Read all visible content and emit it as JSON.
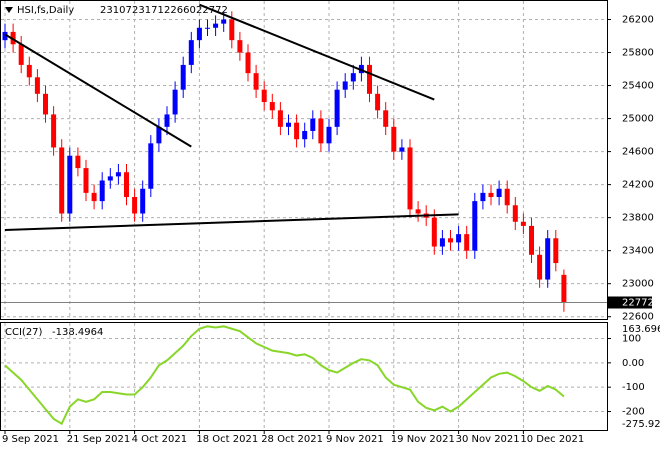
{
  "chart_data": [
    {
      "type": "candlestick",
      "title": "HSI,fs,Daily",
      "categories": [
        "9 Sep 2021",
        null,
        null,
        null,
        null,
        null,
        null,
        null,
        "21 Sep 2021",
        null,
        null,
        null,
        null,
        null,
        null,
        null,
        "4 Oct 2021",
        null,
        null,
        null,
        null,
        null,
        null,
        null,
        "18 Oct 2021",
        null,
        null,
        null,
        null,
        null,
        null,
        null,
        "28 Oct 2021",
        null,
        null,
        null,
        null,
        null,
        null,
        null,
        "9 Nov 2021",
        null,
        null,
        null,
        null,
        null,
        null,
        null,
        "19 Nov 2021",
        null,
        null,
        null,
        null,
        null,
        null,
        null,
        "30 Nov 2021",
        null,
        null,
        null,
        null,
        null,
        null,
        null,
        "10 Dec 2021",
        null,
        null,
        null,
        null,
        null
      ],
      "open": [
        25950,
        26050,
        25900,
        25650,
        25500,
        25300,
        25050,
        24650,
        23850,
        24550,
        24400,
        24100,
        24000,
        24250,
        24300,
        24350,
        24050,
        23850,
        24150,
        24700,
        24900,
        25050,
        25350,
        25650,
        25950,
        26100,
        26100,
        26150,
        26200,
        25950,
        25800,
        25550,
        25350,
        25200,
        25100,
        24900,
        24950,
        24750,
        24850,
        25000,
        24700,
        24900,
        25350,
        25450,
        25550,
        25650,
        25300,
        25100,
        24900,
        24600,
        24650,
        23900,
        23850,
        23800,
        23450,
        23550,
        23500,
        23600,
        23400,
        24000,
        24100,
        24050,
        24150,
        23950,
        23750,
        23700,
        23350,
        23050,
        23550,
        23107
      ],
      "high": [
        26150,
        26150,
        26000,
        25750,
        25600,
        25400,
        25150,
        24750,
        24650,
        24650,
        24500,
        24200,
        24350,
        24400,
        24450,
        24450,
        24150,
        24250,
        24800,
        25000,
        25150,
        25450,
        25750,
        26050,
        26200,
        26200,
        26250,
        26300,
        26300,
        26050,
        25900,
        25650,
        25450,
        25300,
        25200,
        25050,
        25050,
        24950,
        25100,
        25100,
        25000,
        25450,
        25550,
        25650,
        25750,
        25750,
        25400,
        25200,
        25000,
        24750,
        24750,
        24000,
        23950,
        23900,
        23650,
        23650,
        23700,
        23700,
        24100,
        24200,
        24200,
        24250,
        24250,
        24050,
        23850,
        23800,
        23450,
        23650,
        23650,
        23171
      ],
      "low": [
        25850,
        25800,
        25550,
        25400,
        25200,
        24950,
        24550,
        23750,
        23750,
        24300,
        24000,
        23900,
        23900,
        24150,
        24200,
        23950,
        23750,
        23750,
        24050,
        24600,
        24800,
        24950,
        25250,
        25550,
        25850,
        26000,
        26000,
        26050,
        25850,
        25700,
        25450,
        25250,
        25100,
        25000,
        24800,
        24800,
        24650,
        24650,
        24750,
        24600,
        24600,
        24800,
        25250,
        25350,
        25450,
        25200,
        25000,
        24800,
        24500,
        24500,
        23800,
        23750,
        23700,
        23350,
        23350,
        23400,
        23400,
        23300,
        23300,
        23900,
        23950,
        23950,
        23850,
        23650,
        23600,
        23250,
        22950,
        22950,
        23150,
        22660
      ],
      "close": [
        26050,
        25900,
        25650,
        25500,
        25300,
        25050,
        24650,
        23850,
        24550,
        24400,
        24100,
        24000,
        24250,
        24300,
        24350,
        24050,
        23850,
        24150,
        24700,
        24900,
        25050,
        25350,
        25650,
        25950,
        26100,
        26100,
        26150,
        26200,
        25950,
        25800,
        25550,
        25350,
        25200,
        25100,
        24900,
        24950,
        24750,
        24850,
        25000,
        24700,
        24900,
        25350,
        25450,
        25550,
        25650,
        25300,
        25100,
        24900,
        24600,
        24650,
        23900,
        23850,
        23800,
        23450,
        23550,
        23500,
        23600,
        23400,
        24000,
        24100,
        24050,
        24150,
        23950,
        23750,
        23700,
        23350,
        23050,
        23550,
        23250,
        22772
      ],
      "up_color": "#0000ff",
      "down_color": "#ff0000",
      "trendlines": [
        {
          "x": [
            0,
            23
          ],
          "y": [
            26020,
            24660
          ],
          "color": "#000000"
        },
        {
          "x": [
            24,
            53
          ],
          "y": [
            26380,
            25230
          ],
          "color": "#000000"
        },
        {
          "x": [
            0,
            56
          ],
          "y": [
            23650,
            23840
          ],
          "color": "#000000"
        }
      ],
      "ylim": [
        22560,
        26400
      ],
      "yticks": [
        22600,
        23000,
        23400,
        23800,
        24200,
        24600,
        25000,
        25400,
        25800,
        26200
      ],
      "grid": true
    },
    {
      "type": "line",
      "title": "CCI(27)",
      "color": "#88d62a",
      "values": [
        -10,
        -40,
        -70,
        -110,
        -150,
        -190,
        -230,
        -250,
        -180,
        -150,
        -160,
        -150,
        -120,
        -120,
        -125,
        -130,
        -130,
        -100,
        -60,
        -10,
        10,
        40,
        70,
        110,
        140,
        150,
        145,
        150,
        140,
        130,
        105,
        80,
        65,
        50,
        45,
        40,
        30,
        35,
        20,
        -10,
        -30,
        -40,
        -20,
        0,
        15,
        10,
        -10,
        -60,
        -90,
        -100,
        -110,
        -160,
        -185,
        -195,
        -180,
        -200,
        -180,
        -150,
        -120,
        -90,
        -60,
        -45,
        -40,
        -55,
        -75,
        -100,
        -115,
        -95,
        -110,
        -138.4964
      ],
      "ylim": [
        -275.924,
        163.6968
      ],
      "yticks": [
        -200,
        -100,
        {
          "value": 0,
          "label": "0.00"
        },
        100
      ],
      "grid": true
    }
  ]
}
